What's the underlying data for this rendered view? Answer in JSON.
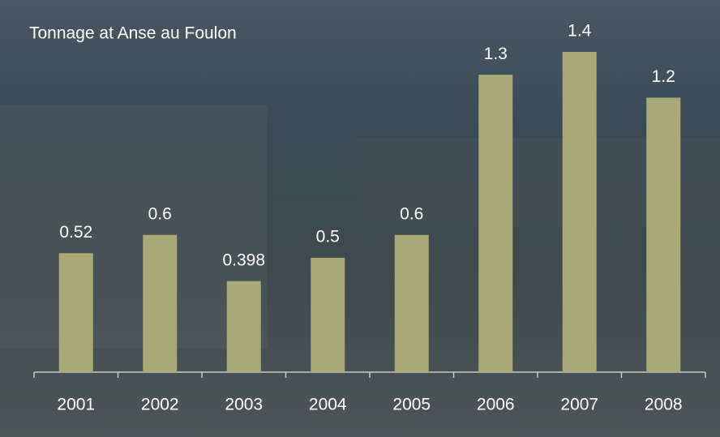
{
  "chart_data": {
    "type": "bar",
    "title": "Tonnage at Anse au Foulon",
    "categories": [
      "2001",
      "2002",
      "2003",
      "2004",
      "2005",
      "2006",
      "2007",
      "2008"
    ],
    "values": [
      0.52,
      0.6,
      0.398,
      0.5,
      0.6,
      1.3,
      1.4,
      1.2
    ],
    "color": "#a7a976",
    "ylim": [
      0,
      1.4
    ]
  }
}
